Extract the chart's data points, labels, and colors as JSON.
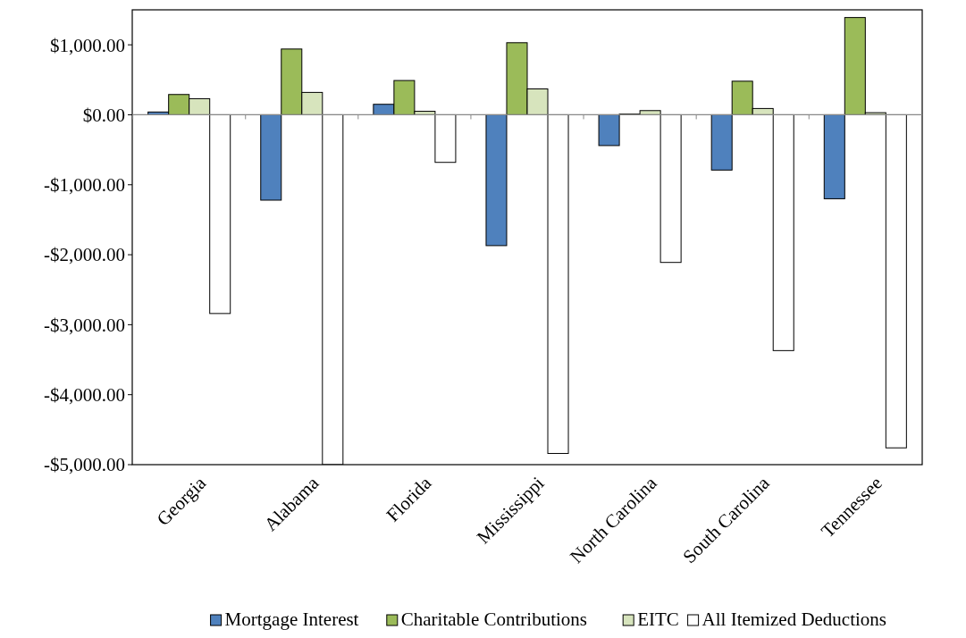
{
  "chart_data": {
    "type": "bar",
    "categories": [
      "Georgia",
      "Alabama",
      "Florida",
      "Mississippi",
      "North Carolina",
      "South Carolina",
      "Tennessee"
    ],
    "series": [
      {
        "name": "Mortgage Interest",
        "color": "#4f81bd",
        "values": [
          40,
          -1220,
          150,
          -1870,
          -440,
          -790,
          -1200
        ]
      },
      {
        "name": "Charitable Contributions",
        "color": "#9bbb59",
        "values": [
          290,
          940,
          490,
          1030,
          10,
          480,
          1390
        ]
      },
      {
        "name": "EITC",
        "color": "#d7e4bd",
        "values": [
          230,
          320,
          50,
          370,
          60,
          90,
          30
        ]
      },
      {
        "name": "All Itemized Deductions",
        "color": "#ffffff",
        "values": [
          -2840,
          -5000,
          -680,
          -4840,
          -2110,
          -3370,
          -4760
        ]
      }
    ],
    "ylim": [
      -5000,
      1500
    ],
    "yticks": [
      {
        "value": -5000,
        "label": "-$5,000.00"
      },
      {
        "value": -4000,
        "label": "-$4,000.00"
      },
      {
        "value": -3000,
        "label": "-$3,000.00"
      },
      {
        "value": -2000,
        "label": "-$2,000.00"
      },
      {
        "value": -1000,
        "label": "-$1,000.00"
      },
      {
        "value": 0,
        "label": "$0.00"
      },
      {
        "value": 1000,
        "label": "$1,000.00"
      }
    ],
    "legend": "bottom"
  }
}
